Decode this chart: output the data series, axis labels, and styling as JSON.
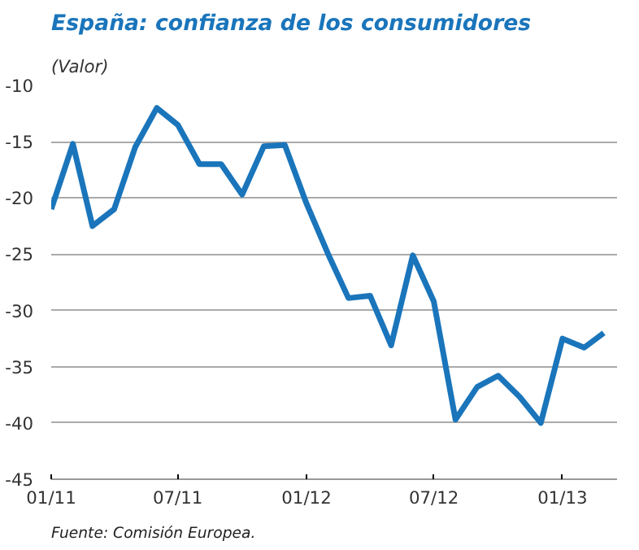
{
  "chart_data": {
    "type": "line",
    "title": "España: confianza de los consumidores",
    "subtitle": "(Valor)",
    "x": [
      "2011-01",
      "2011-02",
      "2011-03",
      "2011-04",
      "2011-05",
      "2011-06",
      "2011-07",
      "2011-08",
      "2011-09",
      "2011-10",
      "2011-11",
      "2011-12",
      "2012-01",
      "2012-02",
      "2012-03",
      "2012-04",
      "2012-05",
      "2012-06",
      "2012-07",
      "2012-08",
      "2012-09",
      "2012-10",
      "2012-11",
      "2012-12",
      "2013-01",
      "2013-02",
      "2013-03"
    ],
    "series": [
      {
        "color": "#1a75bb",
        "values": [
          -21,
          -15.2,
          -22.5,
          -21,
          -15.5,
          -12,
          -13.5,
          -17,
          -17,
          -19.7,
          -15.4,
          -15.3,
          -20.5,
          -25,
          -28.9,
          -28.7,
          -33.1,
          -25.1,
          -29.2,
          -39.7,
          -36.8,
          -35.8,
          -37.7,
          -40,
          -32.5,
          -33.3,
          -32
        ]
      }
    ],
    "xlim": [
      "2011-01",
      "2013-03-20"
    ],
    "xticks": [
      {
        "value": "2011-01",
        "label": "01/11"
      },
      {
        "value": "2011-07",
        "label": "07/11"
      },
      {
        "value": "2012-01",
        "label": "01/12"
      },
      {
        "value": "2012-07",
        "label": "07/12"
      },
      {
        "value": "2013-01",
        "label": "01/13"
      }
    ],
    "ylim": [
      -45,
      -10
    ],
    "yticks": [
      -45,
      -40,
      -35,
      -30,
      -25,
      -20,
      -15,
      -10
    ],
    "grid": "y",
    "marker": "none",
    "line_style": "solid",
    "annotations": [
      "Fuente: Comisión Europea."
    ]
  }
}
